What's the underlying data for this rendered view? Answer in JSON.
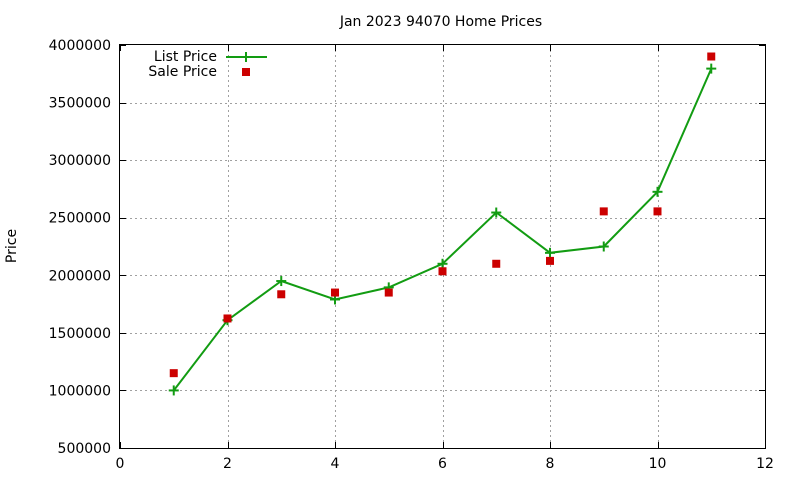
{
  "chart_data": {
    "type": "line",
    "title": "Jan 2023 94070 Home Prices",
    "xlabel": "",
    "ylabel": "Price",
    "xlim": [
      0,
      12
    ],
    "ylim": [
      500000,
      4000000
    ],
    "x_ticks": [
      0,
      2,
      4,
      6,
      8,
      10,
      12
    ],
    "y_ticks": [
      500000,
      1000000,
      1500000,
      2000000,
      2500000,
      3000000,
      3500000,
      4000000
    ],
    "grid": true,
    "legend_position": "top-left",
    "series": [
      {
        "name": "List Price",
        "style": "line-with-plus-markers",
        "color": "#129c12",
        "x": [
          1,
          2,
          3,
          4,
          5,
          6,
          7,
          8,
          9,
          10,
          11
        ],
        "values": [
          1000000,
          1610000,
          1950000,
          1790000,
          1895000,
          2100000,
          2545000,
          2195000,
          2250000,
          2725000,
          3795000
        ]
      },
      {
        "name": "Sale Price",
        "style": "square-markers",
        "color": "#cc0000",
        "x": [
          1,
          2,
          3,
          4,
          5,
          6,
          7,
          8,
          9,
          10,
          11
        ],
        "values": [
          1150000,
          1625000,
          1835000,
          1850000,
          1850000,
          2035000,
          2100000,
          2125000,
          2555000,
          2555000,
          3900000
        ]
      }
    ]
  }
}
